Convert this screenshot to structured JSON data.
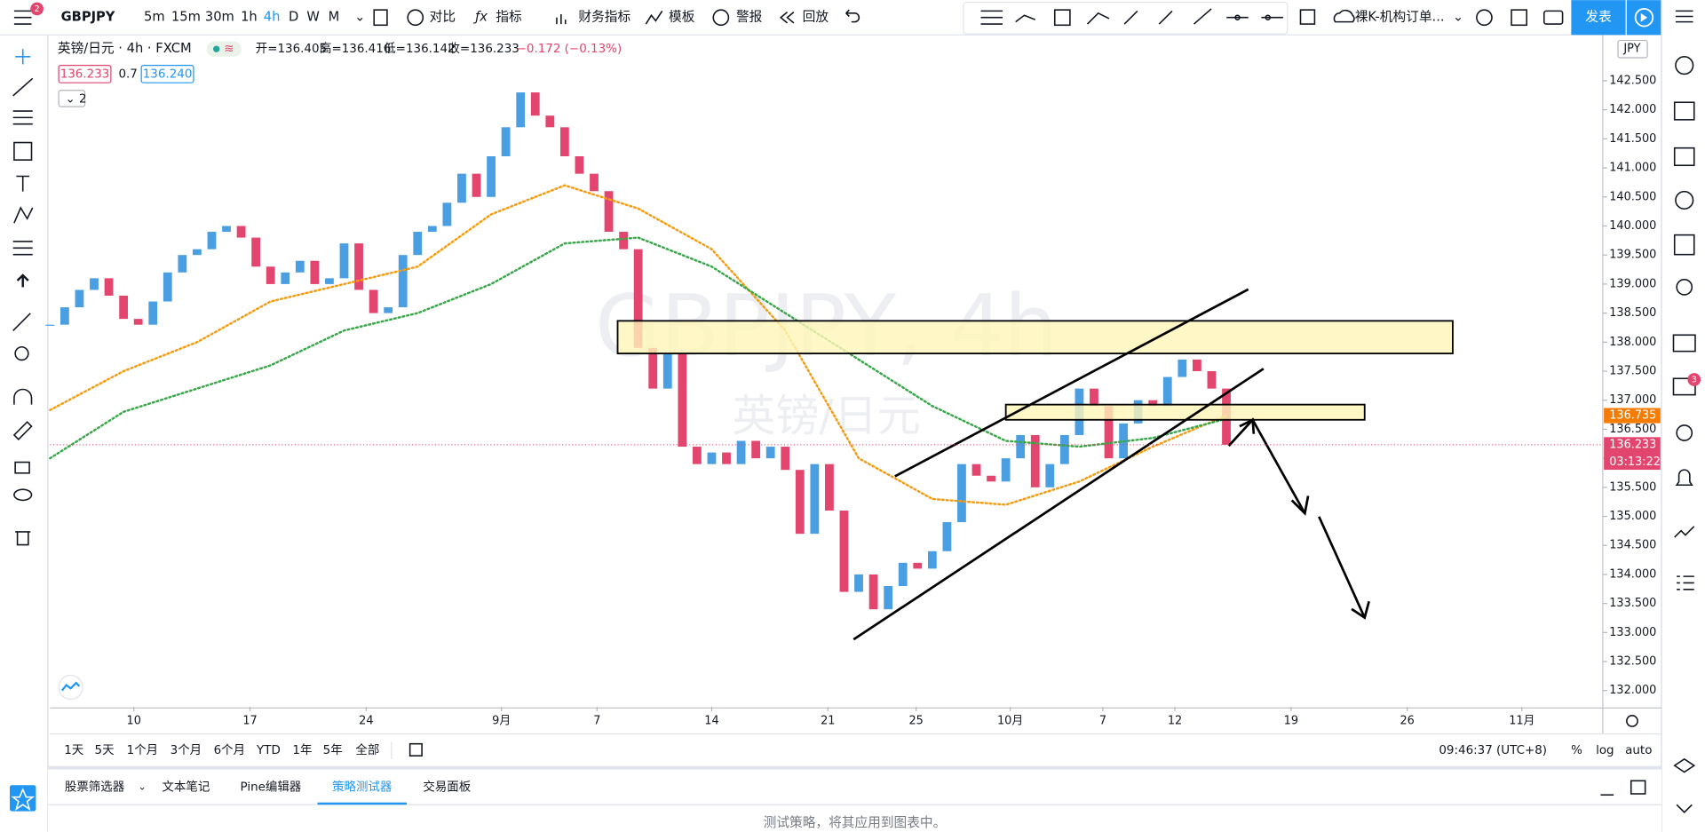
{
  "toolbar": {
    "symbol": "GBPJPY",
    "intervals": [
      "5m",
      "15m",
      "30m",
      "1h",
      "4h",
      "D",
      "W",
      "M"
    ],
    "compare": "对比",
    "indicators": "指标",
    "financials": "财务指标",
    "templates": "模板",
    "alerts": "警报",
    "replay": "回放",
    "layout_name": "裸K-机构订单...",
    "publish": "发表",
    "notification_count": "2"
  },
  "legend": {
    "symbol_line": "英镑/日元 · 4h · FXCM",
    "open": "开=136.405",
    "high": "高=136.416",
    "low": "低=136.142",
    "close": "收=136.233",
    "change": "−0.172 (−0.13%)",
    "bid": "136.233",
    "spread": "0.7",
    "ask": "136.240",
    "collapsed": "2"
  },
  "chart_data": {
    "type": "candlestick",
    "title": "GBPJPY, 4h",
    "subtitle": "英镑/日元",
    "currency": "JPY",
    "closes": [
      138.3,
      138.6,
      138.9,
      139.1,
      138.8,
      138.4,
      138.3,
      138.7,
      139.2,
      139.5,
      139.6,
      139.9,
      140.0,
      139.8,
      139.3,
      139.0,
      139.2,
      139.4,
      139.0,
      139.1,
      139.7,
      138.9,
      138.5,
      138.6,
      139.5,
      139.9,
      140.0,
      140.4,
      140.9,
      140.5,
      141.2,
      141.7,
      142.3,
      141.9,
      141.7,
      141.2,
      140.9,
      140.6,
      139.9,
      139.6,
      137.9,
      137.2,
      137.8,
      136.2,
      135.9,
      136.1,
      135.9,
      136.3,
      136.0,
      136.2,
      135.8,
      134.7,
      135.9,
      135.1,
      133.7,
      134.0,
      133.4,
      133.8,
      134.2,
      134.1,
      134.4,
      134.9,
      135.9,
      135.7,
      135.6,
      136.0,
      136.4,
      135.5,
      135.9,
      136.4,
      137.2,
      136.9,
      136.0,
      136.6,
      137.0,
      136.9,
      137.4,
      137.7,
      137.5,
      137.2,
      136.233
    ],
    "up_color": "#4a9fe3",
    "down_color": "#e2456e",
    "indicators": [
      {
        "color": "#f39c12",
        "x": [
          0,
          5,
          10,
          15,
          20,
          25,
          30,
          35,
          40,
          45,
          50,
          55,
          60,
          65,
          70,
          75,
          80
        ],
        "values": [
          136.83,
          137.5,
          138.0,
          138.7,
          139.0,
          139.3,
          140.2,
          140.7,
          140.3,
          139.6,
          138.2,
          136.0,
          135.3,
          135.2,
          135.6,
          136.2,
          136.735
        ]
      },
      {
        "color": "#3aa64a",
        "x": [
          0,
          5,
          10,
          15,
          20,
          25,
          30,
          35,
          40,
          45,
          50,
          55,
          60,
          65,
          70,
          75,
          80
        ],
        "values": [
          136.0,
          136.8,
          137.2,
          137.6,
          138.2,
          138.5,
          139.0,
          139.7,
          139.8,
          139.3,
          138.5,
          137.7,
          136.9,
          136.3,
          136.2,
          136.35,
          136.68
        ]
      }
    ],
    "xlim": [
      0,
      105.6
    ],
    "ylim": [
      131.72,
      143.29
    ],
    "xticks": [
      {
        "value": 5.7,
        "label": "10"
      },
      {
        "value": 13.6,
        "label": "17"
      },
      {
        "value": 21.5,
        "label": "24"
      },
      {
        "value": 30.7,
        "label": "9月"
      },
      {
        "value": 37.2,
        "label": "7"
      },
      {
        "value": 45.0,
        "label": "14"
      },
      {
        "value": 52.9,
        "label": "21"
      },
      {
        "value": 58.9,
        "label": "25"
      },
      {
        "value": 65.3,
        "label": "10月"
      },
      {
        "value": 71.6,
        "label": "7"
      },
      {
        "value": 76.5,
        "label": "12"
      },
      {
        "value": 84.4,
        "label": "19"
      },
      {
        "value": 92.3,
        "label": "26"
      },
      {
        "value": 100.1,
        "label": "11月"
      }
    ],
    "yticks": [
      {
        "value": 132,
        "label": "132.000"
      },
      {
        "value": 132.5,
        "label": "132.500"
      },
      {
        "value": 133,
        "label": "133.000"
      },
      {
        "value": 133.5,
        "label": "133.500"
      },
      {
        "value": 134,
        "label": "134.000"
      },
      {
        "value": 134.5,
        "label": "134.500"
      },
      {
        "value": 135,
        "label": "135.000"
      },
      {
        "value": 135.5,
        "label": "135.500"
      },
      {
        "value": 136,
        "label": "136.000"
      },
      {
        "value": 136.5,
        "label": "136.500"
      },
      {
        "value": 137,
        "label": "137.000"
      },
      {
        "value": 137.5,
        "label": "137.500"
      },
      {
        "value": 138,
        "label": "138.000"
      },
      {
        "value": 138.5,
        "label": "138.500"
      },
      {
        "value": 139,
        "label": "139.000"
      },
      {
        "value": 139.5,
        "label": "139.500"
      },
      {
        "value": 140,
        "label": "140.000"
      },
      {
        "value": 140.5,
        "label": "140.500"
      },
      {
        "value": 141,
        "label": "141.000"
      },
      {
        "value": 141.5,
        "label": "141.500"
      },
      {
        "value": 142,
        "label": "142.000"
      },
      {
        "value": 142.5,
        "label": "142.500"
      }
    ],
    "last_price": {
      "value": 136.233,
      "label": "136.233",
      "countdown": "03:13:22",
      "color": "#e2456e"
    },
    "ma_price": {
      "value": 136.735,
      "label": "136.735",
      "color": "#f57c00"
    }
  },
  "bottom_bar": {
    "ranges": [
      "1天",
      "5天",
      "1个月",
      "3个月",
      "6个月",
      "YTD",
      "1年",
      "5年",
      "全部"
    ],
    "clock": "09:46:37 (UTC+8)",
    "percent": "%",
    "log": "log",
    "auto": "auto"
  },
  "panel": {
    "tabs": [
      "股票筛选器",
      "文本笔记",
      "Pine编辑器",
      "策略测试器",
      "交易面板"
    ],
    "message": "测试策略，将其应用到图表中。"
  }
}
